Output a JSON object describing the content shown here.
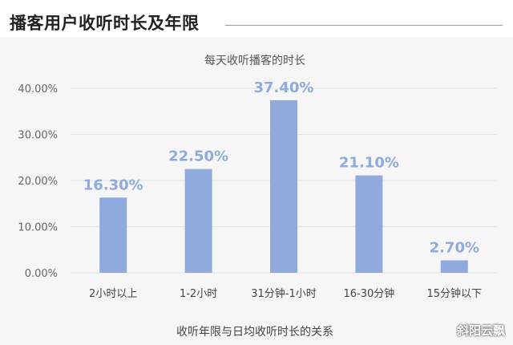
{
  "page": {
    "title": "播客用户收听时长及年限",
    "watermark": "斜阳云飘"
  },
  "colors": {
    "accent_rule": "#f07a3a",
    "bar": "#8faadc",
    "label": "#8faadc",
    "grid": "#e3e3e3",
    "panel_bg": "#f6f6f6"
  },
  "chart_data": {
    "type": "bar",
    "title": "每天收听播客的时长",
    "xlabel": "收听年限与日均收听时长的关系",
    "ylabel": "",
    "categories": [
      "2小时以上",
      "1-2小时",
      "31分钟-1小时",
      "16-30分钟",
      "15分钟以下"
    ],
    "values": [
      16.3,
      22.5,
      37.4,
      21.1,
      2.7
    ],
    "value_labels": [
      "16.30%",
      "22.50%",
      "37.40%",
      "21.10%",
      "2.70%"
    ],
    "ylim": [
      0,
      40
    ],
    "yticks": [
      0,
      10,
      20,
      30,
      40
    ],
    "ytick_labels": [
      "0.00%",
      "10.00%",
      "20.00%",
      "30.00%",
      "40.00%"
    ],
    "grid": true,
    "legend": "none"
  }
}
